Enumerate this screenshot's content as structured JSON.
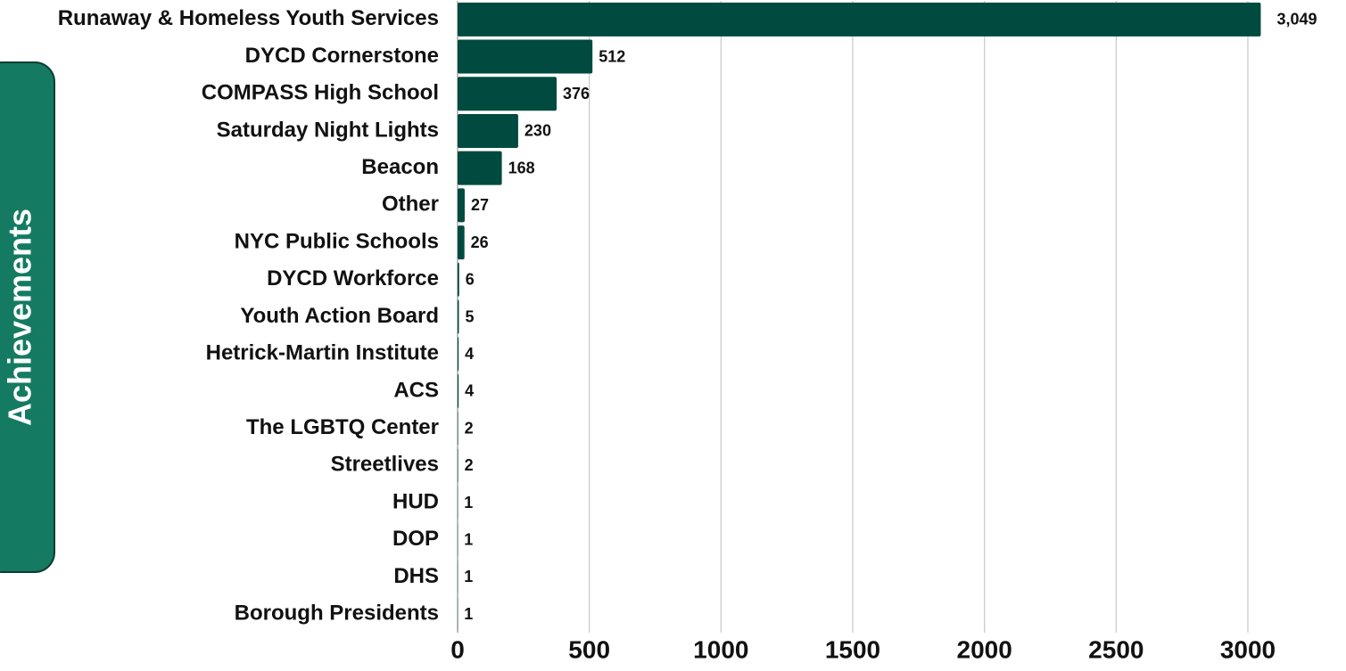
{
  "chart_data": {
    "type": "bar",
    "orientation": "horizontal",
    "y_label": "Achievements",
    "categories": [
      "Runaway & Homeless Youth Services",
      "DYCD Cornerstone",
      "COMPASS High School",
      "Saturday Night Lights",
      "Beacon",
      "Other",
      "NYC Public Schools",
      "DYCD Workforce",
      "Youth Action Board",
      "Hetrick-Martin Institute",
      "ACS",
      "The LGBTQ Center",
      "Streetlives",
      "HUD",
      "DOP",
      "DHS",
      "Borough Presidents"
    ],
    "values": [
      3049,
      512,
      376,
      230,
      168,
      27,
      26,
      6,
      5,
      4,
      4,
      2,
      2,
      1,
      1,
      1,
      1
    ],
    "value_labels": [
      "3,049",
      "512",
      "376",
      "230",
      "168",
      "27",
      "26",
      "6",
      "5",
      "4",
      "4",
      "2",
      "2",
      "1",
      "1",
      "1",
      "1"
    ],
    "color": "#014a3f",
    "xlim": [
      0,
      3100
    ],
    "xticks": [
      0,
      500,
      1000,
      1500,
      2000,
      2500,
      3000
    ],
    "grid": true
  }
}
